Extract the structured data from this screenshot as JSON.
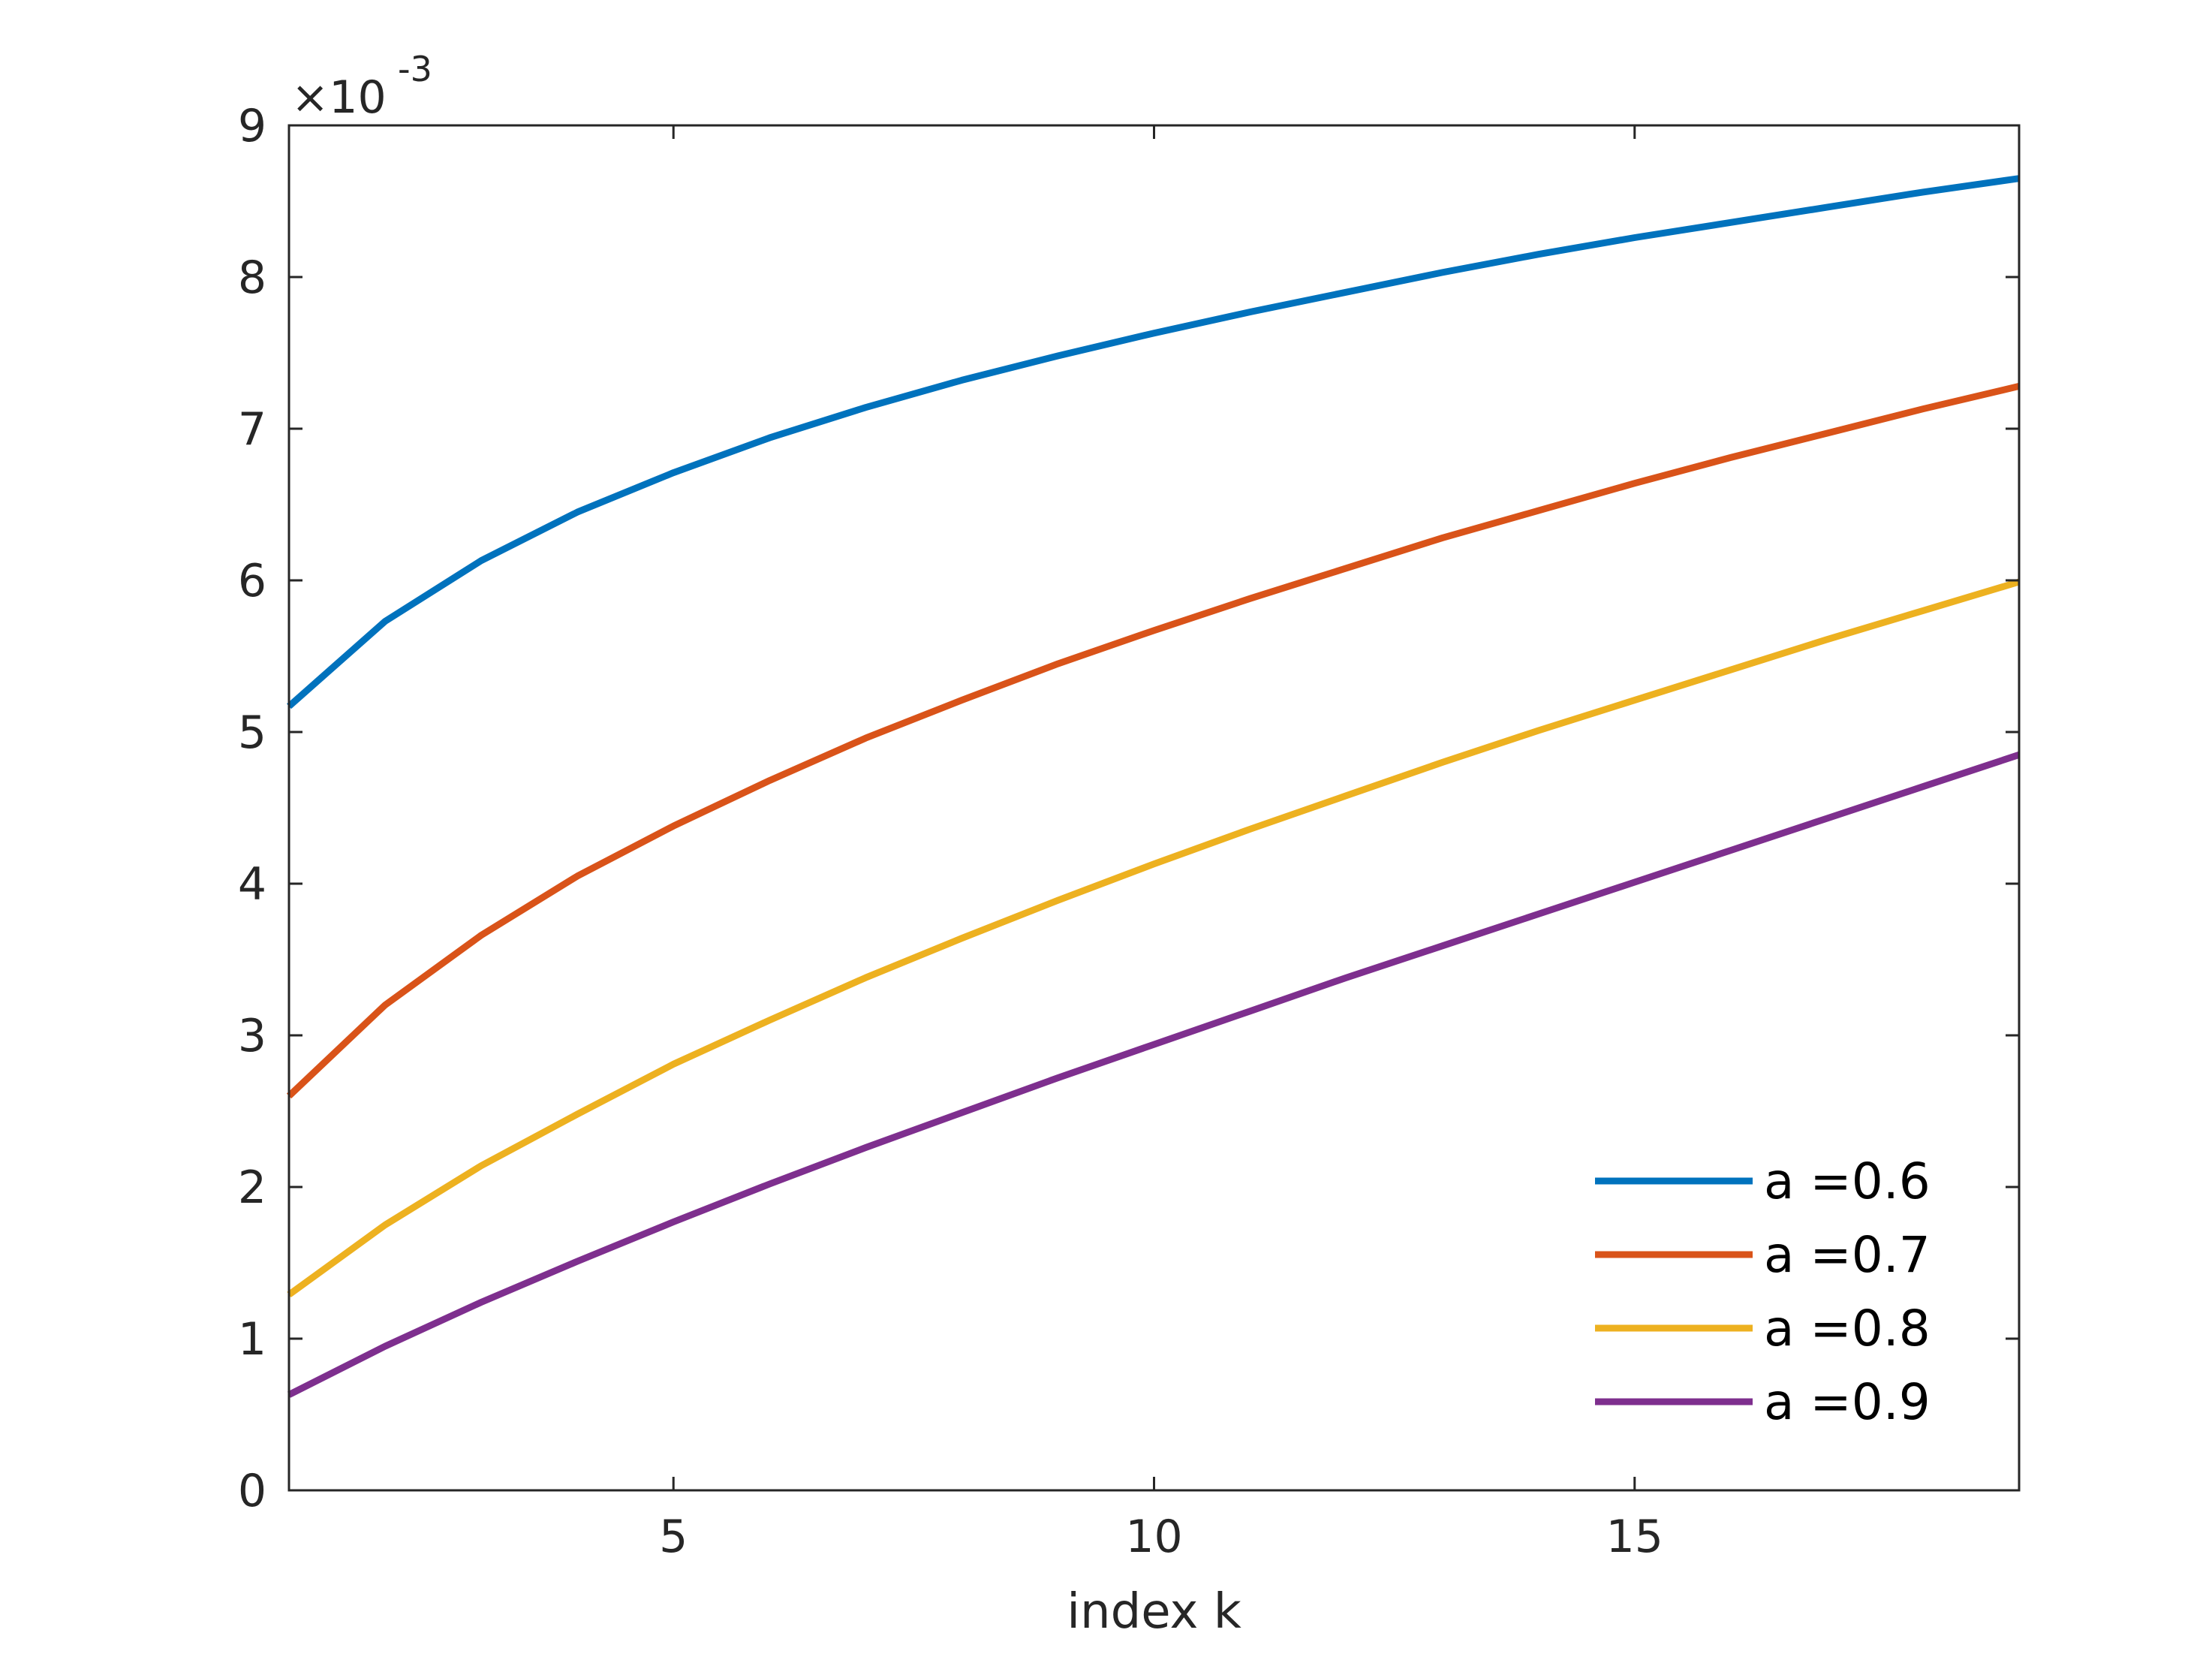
{
  "chart_data": {
    "type": "line",
    "xlabel": "index k",
    "ylabel": "",
    "title": "",
    "exponent_base": "×10",
    "exponent_power": "-3",
    "xlim": [
      1,
      19
    ],
    "ylim": [
      0,
      0.009
    ],
    "xticks": [
      5,
      10,
      15
    ],
    "yticks": [
      0,
      0.001,
      0.002,
      0.003,
      0.004,
      0.005,
      0.006,
      0.007,
      0.008,
      0.009
    ],
    "ytick_labels": [
      "0",
      "1",
      "2",
      "3",
      "4",
      "5",
      "6",
      "7",
      "8",
      "9"
    ],
    "xtick_labels": [
      "5",
      "10",
      "15"
    ],
    "legend_position": "bottom-right",
    "grid": false,
    "x": [
      1,
      2,
      3,
      4,
      5,
      6,
      7,
      8,
      9,
      10,
      11,
      12,
      13,
      14,
      15,
      16,
      17,
      18,
      19
    ],
    "series": [
      {
        "name": "a =0.6",
        "color": "#0072bd",
        "values": [
          0.00517,
          0.00573,
          0.00613,
          0.00645,
          0.00671,
          0.00694,
          0.00714,
          0.00732,
          0.00748,
          0.00763,
          0.00777,
          0.0079,
          0.00803,
          0.00815,
          0.00826,
          0.00836,
          0.00846,
          0.00856,
          0.00865
        ]
      },
      {
        "name": "a =0.7",
        "color": "#d95319",
        "values": [
          0.0026,
          0.0032,
          0.00366,
          0.00405,
          0.00438,
          0.00468,
          0.00496,
          0.00521,
          0.00545,
          0.00567,
          0.00588,
          0.00608,
          0.00628,
          0.00646,
          0.00664,
          0.00681,
          0.00697,
          0.00713,
          0.00728
        ]
      },
      {
        "name": "a =0.8",
        "color": "#edb120",
        "values": [
          0.00129,
          0.00175,
          0.00214,
          0.00248,
          0.00281,
          0.0031,
          0.00338,
          0.00364,
          0.00389,
          0.00413,
          0.00436,
          0.00458,
          0.0048,
          0.00501,
          0.00521,
          0.00541,
          0.00561,
          0.0058,
          0.00599
        ]
      },
      {
        "name": "a =0.9",
        "color": "#7e2f8e",
        "values": [
          0.00063,
          0.00095,
          0.00124,
          0.00151,
          0.00177,
          0.00202,
          0.00226,
          0.00249,
          0.00272,
          0.00294,
          0.00316,
          0.00338,
          0.00359,
          0.0038,
          0.00401,
          0.00422,
          0.00443,
          0.00464,
          0.00485
        ]
      }
    ]
  }
}
